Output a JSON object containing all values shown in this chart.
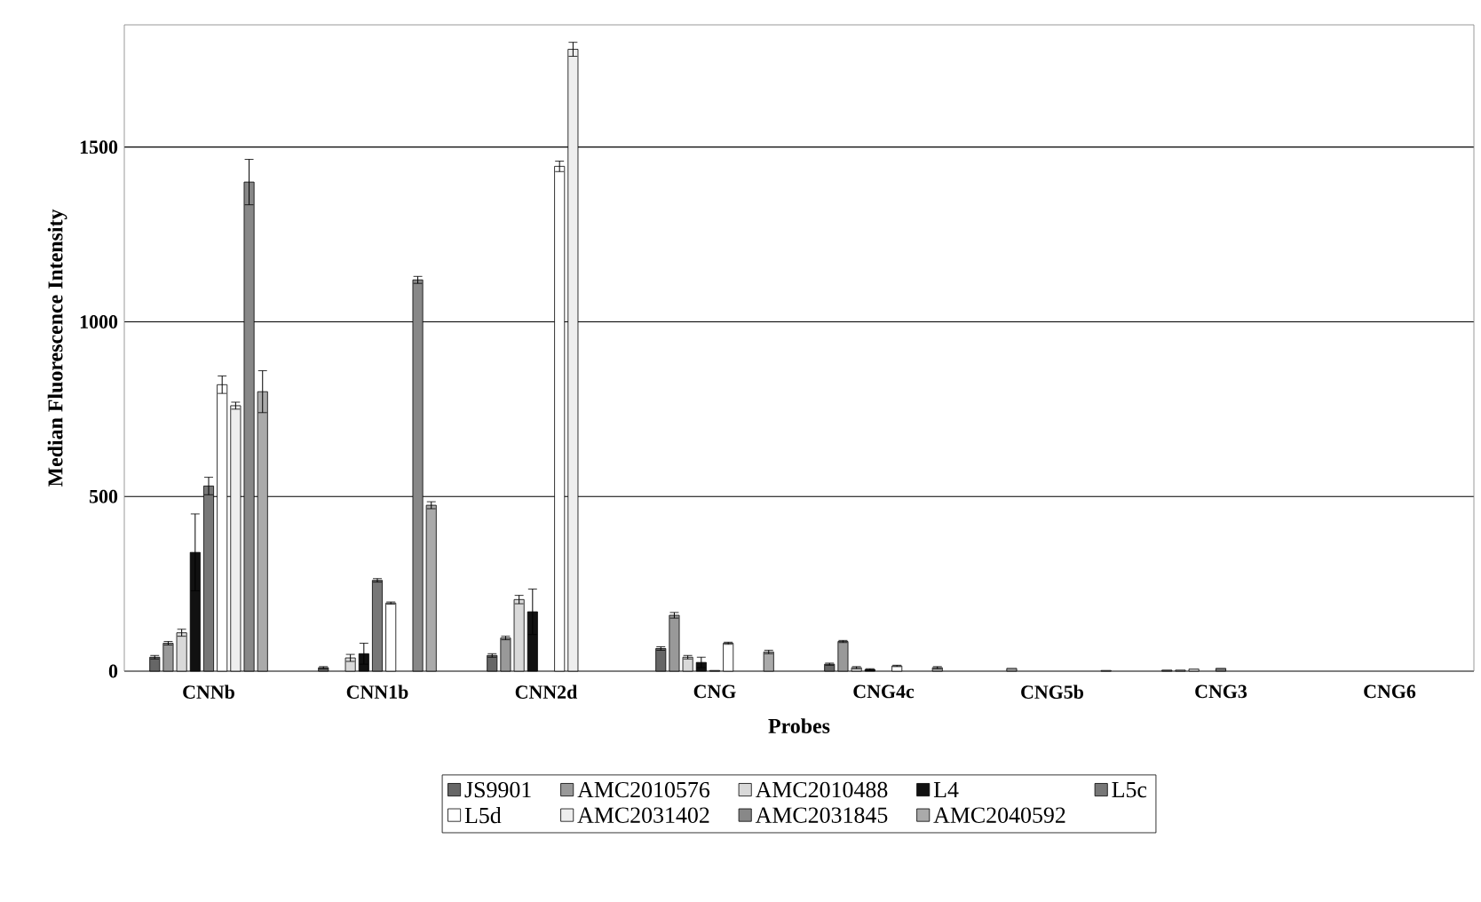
{
  "chart_data": {
    "type": "bar",
    "xlabel": "Probes",
    "ylabel": "Median Fluorescence Intensity",
    "categories": [
      "CNNb",
      "CNN1b",
      "CNN2d",
      "CNG",
      "CNG4c",
      "CNG5b",
      "CNG3",
      "CNG6"
    ],
    "ylim": [
      0,
      1850
    ],
    "yticks": [
      0,
      500,
      1000,
      1500
    ],
    "grid": "y",
    "legend": "bottom",
    "series": [
      {
        "name": "JS9901",
        "color": "#666666",
        "values": [
          40,
          10,
          45,
          65,
          20,
          null,
          3,
          null
        ],
        "errors": [
          5,
          3,
          5,
          5,
          3,
          null,
          null,
          null
        ]
      },
      {
        "name": "AMC2010576",
        "color": "#999999",
        "values": [
          80,
          null,
          95,
          160,
          85,
          8,
          3,
          null
        ],
        "errors": [
          5,
          null,
          5,
          8,
          3,
          null,
          null,
          null
        ]
      },
      {
        "name": "AMC2010488",
        "color": "#d9d9d9",
        "values": [
          110,
          38,
          205,
          40,
          10,
          null,
          6,
          null
        ],
        "errors": [
          10,
          10,
          12,
          5,
          3,
          null,
          null,
          null
        ]
      },
      {
        "name": "L4",
        "color": "#111111",
        "values": [
          340,
          50,
          170,
          25,
          5,
          null,
          null,
          null
        ],
        "errors": [
          110,
          30,
          65,
          15,
          2,
          null,
          null,
          null
        ]
      },
      {
        "name": "L5c",
        "color": "#777777",
        "values": [
          530,
          260,
          null,
          2,
          null,
          null,
          8,
          null
        ],
        "errors": [
          25,
          5,
          null,
          null,
          null,
          null,
          null,
          null
        ]
      },
      {
        "name": "L5d",
        "color": "#ffffff",
        "values": [
          820,
          195,
          1445,
          80,
          15,
          null,
          null,
          null
        ],
        "errors": [
          25,
          3,
          15,
          3,
          2,
          null,
          null,
          null
        ]
      },
      {
        "name": "AMC2031402",
        "color": "#eeeeee",
        "values": [
          760,
          null,
          1780,
          null,
          null,
          null,
          null,
          null
        ],
        "errors": [
          10,
          null,
          20,
          null,
          null,
          null,
          null,
          null
        ]
      },
      {
        "name": "AMC2031845",
        "color": "#888888",
        "values": [
          1400,
          1120,
          null,
          null,
          null,
          null,
          null,
          null
        ],
        "errors": [
          65,
          10,
          null,
          null,
          null,
          null,
          null,
          null
        ]
      },
      {
        "name": "AMC2040592",
        "color": "#aaaaaa",
        "values": [
          800,
          475,
          null,
          55,
          10,
          2,
          null,
          null
        ],
        "errors": [
          60,
          10,
          null,
          5,
          3,
          null,
          null,
          null
        ]
      }
    ]
  }
}
